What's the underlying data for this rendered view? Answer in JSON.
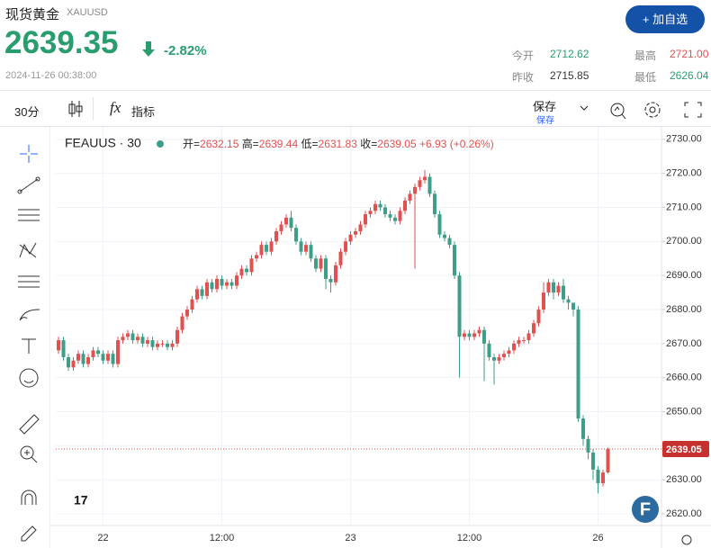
{
  "header": {
    "title": "现货黄金",
    "symbol": "XAUUSD",
    "price": "2639.35",
    "change": "-2.82%",
    "datetime": "2024-11-26 00:38:00",
    "add_button": "+ 加自选",
    "stats": [
      {
        "label": "今开",
        "value": "2712.62"
      },
      {
        "label": "最高",
        "value": "2721.00"
      },
      {
        "label": "昨收",
        "value": "2715.85"
      },
      {
        "label": "最低",
        "value": "2626.04"
      }
    ]
  },
  "toolbar": {
    "interval": "30分",
    "indicators": "指标",
    "save": "保存",
    "save_sub": "保存"
  },
  "chart_data": {
    "type": "candlestick",
    "legend": {
      "symbol": "FEAUUS · 30",
      "fields": [
        "开=",
        "高=",
        "低=",
        "收="
      ],
      "change": "+6.93 (+0.26%)"
    },
    "up_color": "#e0524f",
    "down_color": "#3f9e87",
    "grid": true,
    "ylim": [
      2617.1,
      2732.6
    ],
    "yticks": [
      {
        "value": 2620,
        "label": "2620.00"
      },
      {
        "value": 2630,
        "label": "2630.00"
      },
      {
        "value": 2640,
        "label": "2640.00"
      },
      {
        "value": 2650,
        "label": "2650.00"
      },
      {
        "value": 2660,
        "label": "2660.00"
      },
      {
        "value": 2670,
        "label": "2670.00"
      },
      {
        "value": 2680,
        "label": "2680.00"
      },
      {
        "value": 2690,
        "label": "2690.00"
      },
      {
        "value": 2700,
        "label": "2700.00"
      },
      {
        "value": 2710,
        "label": "2710.00"
      },
      {
        "value": 2720,
        "label": "2720.00"
      },
      {
        "value": 2730,
        "label": "2730.00"
      }
    ],
    "categories": [
      null,
      null,
      null,
      null,
      null,
      null,
      null,
      null,
      null,
      "22",
      null,
      null,
      null,
      null,
      null,
      null,
      null,
      null,
      null,
      null,
      null,
      null,
      null,
      null,
      null,
      null,
      null,
      null,
      null,
      null,
      null,
      null,
      null,
      "12:00",
      null,
      null,
      null,
      null,
      null,
      null,
      null,
      null,
      null,
      null,
      null,
      null,
      null,
      null,
      null,
      null,
      null,
      null,
      null,
      null,
      null,
      null,
      null,
      null,
      null,
      "23",
      null,
      null,
      null,
      null,
      null,
      null,
      null,
      null,
      null,
      null,
      null,
      null,
      null,
      null,
      null,
      null,
      null,
      null,
      null,
      null,
      null,
      null,
      null,
      "12:00",
      null,
      null,
      null,
      null,
      null,
      null,
      null,
      null,
      null,
      null,
      null,
      null,
      null,
      null,
      null,
      null,
      null,
      null,
      null,
      null,
      null,
      null,
      null,
      null,
      null,
      "26",
      null,
      null
    ],
    "open": [
      2668,
      2671,
      2666,
      2663,
      2665,
      2667,
      2664,
      2666,
      2668,
      2667,
      2665,
      2667,
      2664,
      2671,
      2672,
      2673,
      2671,
      2672,
      2670,
      2671,
      2669,
      2670,
      2670,
      2669,
      2670,
      2674,
      2678,
      2680,
      2683,
      2686,
      2684,
      2688,
      2686,
      2689,
      2687,
      2688,
      2687,
      2690,
      2692,
      2691,
      2695,
      2696,
      2699,
      2697,
      2700,
      2703,
      2705,
      2707,
      2704,
      2700,
      2697,
      2699,
      2695,
      2692,
      2695,
      2689,
      2688,
      2693,
      2697,
      2700,
      2702,
      2703,
      2705,
      2708,
      2709,
      2711,
      2710,
      2708,
      2707,
      2706,
      2709,
      2712,
      2714,
      2716,
      2718,
      2719,
      2714,
      2708,
      2702,
      2701,
      2699,
      2690,
      2672,
      2673,
      2672,
      2673,
      2674,
      2670,
      2666,
      2665,
      2666,
      2667,
      2668,
      2670,
      2671,
      2671,
      2673,
      2676,
      2680,
      2685,
      2688,
      2685,
      2687,
      2683,
      2682,
      2680,
      2648,
      2642,
      2638,
      2633,
      2629,
      2632.15
    ],
    "high": [
      2672,
      2672,
      2667,
      2666,
      2668,
      2668,
      2667,
      2669,
      2669,
      2668,
      2668,
      2668,
      2672,
      2673,
      2674,
      2674,
      2673,
      2673,
      2672,
      2672,
      2671,
      2671,
      2671,
      2671,
      2675,
      2679,
      2681,
      2684,
      2687,
      2687,
      2689,
      2689,
      2690,
      2690,
      2689,
      2689,
      2691,
      2693,
      2693,
      2696,
      2697,
      2700,
      2700,
      2701,
      2704,
      2706,
      2708,
      2709,
      2705,
      2701,
      2700,
      2700,
      2696,
      2696,
      2696,
      2690,
      2694,
      2698,
      2701,
      2703,
      2704,
      2706,
      2709,
      2710,
      2712,
      2712,
      2711,
      2709,
      2708,
      2710,
      2713,
      2715,
      2717,
      2719,
      2721,
      2720,
      2715,
      2709,
      2703,
      2702,
      2700,
      2691,
      2674,
      2674,
      2674,
      2675,
      2675,
      2671,
      2667,
      2667,
      2668,
      2669,
      2671,
      2672,
      2672,
      2674,
      2677,
      2681,
      2688,
      2689,
      2689,
      2688,
      2689,
      2684,
      2682,
      2681,
      2649,
      2643,
      2639,
      2634,
      2633,
      2639.44
    ],
    "low": [
      2667,
      2665,
      2662,
      2662,
      2664,
      2663,
      2663,
      2665,
      2666,
      2664,
      2664,
      2663,
      2663,
      2670,
      2671,
      2670,
      2670,
      2669,
      2669,
      2668,
      2668,
      2669,
      2668,
      2668,
      2669,
      2673,
      2677,
      2679,
      2682,
      2683,
      2683,
      2685,
      2685,
      2686,
      2686,
      2686,
      2686,
      2689,
      2690,
      2690,
      2694,
      2695,
      2696,
      2696,
      2699,
      2702,
      2704,
      2703,
      2699,
      2696,
      2696,
      2694,
      2691,
      2691,
      2686,
      2685,
      2687,
      2692,
      2696,
      2699,
      2701,
      2702,
      2704,
      2707,
      2708,
      2709,
      2707,
      2706,
      2705,
      2705,
      2708,
      2711,
      2692,
      2715,
      2717,
      2713,
      2707,
      2701,
      2700,
      2698,
      2689,
      2660,
      2671,
      2671,
      2671,
      2672,
      2659,
      2665,
      2658,
      2664,
      2665,
      2666,
      2667,
      2669,
      2670,
      2670,
      2672,
      2675,
      2679,
      2684,
      2683,
      2684,
      2682,
      2680,
      2678,
      2647,
      2640,
      2636,
      2630,
      2626,
      2628,
      2631.83
    ],
    "close": [
      2671,
      2666,
      2663,
      2665,
      2667,
      2664,
      2666,
      2668,
      2667,
      2665,
      2667,
      2664,
      2671,
      2672,
      2673,
      2671,
      2672,
      2670,
      2671,
      2669,
      2670,
      2670,
      2669,
      2670,
      2674,
      2678,
      2680,
      2683,
      2686,
      2684,
      2688,
      2686,
      2689,
      2687,
      2688,
      2687,
      2690,
      2692,
      2691,
      2695,
      2696,
      2699,
      2697,
      2700,
      2703,
      2705,
      2707,
      2704,
      2700,
      2697,
      2699,
      2695,
      2692,
      2695,
      2689,
      2688,
      2693,
      2697,
      2700,
      2702,
      2703,
      2705,
      2708,
      2709,
      2711,
      2710,
      2708,
      2707,
      2706,
      2709,
      2712,
      2714,
      2716,
      2718,
      2719,
      2714,
      2708,
      2702,
      2701,
      2699,
      2690,
      2672,
      2673,
      2672,
      2673,
      2674,
      2670,
      2666,
      2665,
      2666,
      2667,
      2668,
      2670,
      2671,
      2671,
      2673,
      2676,
      2680,
      2685,
      2688,
      2685,
      2687,
      2683,
      2682,
      2680,
      2648,
      2642,
      2638,
      2633,
      2629,
      2632.15,
      2639.05
    ]
  }
}
